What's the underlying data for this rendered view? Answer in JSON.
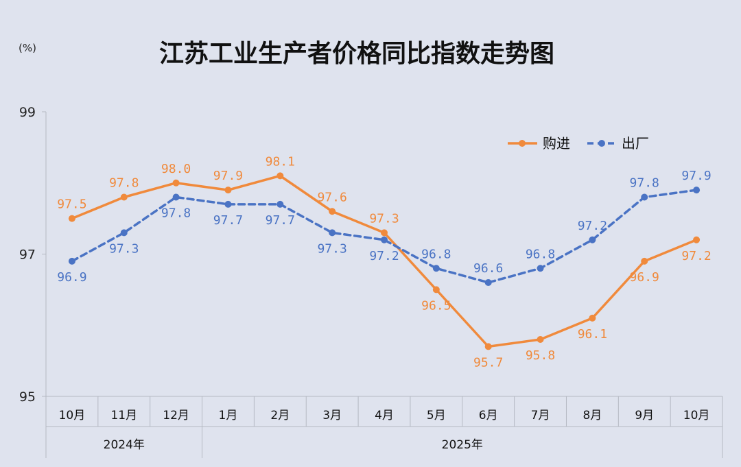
{
  "chart_data": {
    "type": "line",
    "title": "江苏工业生产者价格同比指数走势图",
    "unit_label": "(%)",
    "ylim": [
      95,
      99
    ],
    "yticks": [
      "95",
      "97",
      "99"
    ],
    "grid": false,
    "legend_position": "top-right",
    "categories": [
      "10月",
      "11月",
      "12月",
      "1月",
      "2月",
      "3月",
      "4月",
      "5月",
      "6月",
      "7月",
      "8月",
      "9月",
      "10月"
    ],
    "year_groups": [
      {
        "label": "2024年",
        "count": 3
      },
      {
        "label": "2025年",
        "count": 10
      }
    ],
    "series": [
      {
        "name": "购进",
        "color": "#f08a3c",
        "style": "solid",
        "values": [
          97.5,
          97.8,
          98.0,
          97.9,
          98.1,
          97.6,
          97.3,
          96.5,
          95.7,
          95.8,
          96.1,
          96.9,
          97.2
        ],
        "labels": [
          "97.5",
          "97.8",
          "98.0",
          "97.9",
          "98.1",
          "97.6",
          "97.3",
          "96.5",
          "95.7",
          "95.8",
          "96.1",
          "96.9",
          "97.2"
        ]
      },
      {
        "name": "出厂",
        "color": "#4a73c4",
        "style": "dashed",
        "values": [
          96.9,
          97.3,
          97.8,
          97.7,
          97.7,
          97.3,
          97.2,
          96.8,
          96.6,
          96.8,
          97.2,
          97.8,
          97.9
        ],
        "labels": [
          "96.9",
          "97.3",
          "97.8",
          "97.7",
          "97.7",
          "97.3",
          "97.2",
          "96.8",
          "96.6",
          "96.8",
          "97.2",
          "97.8",
          "97.9"
        ]
      }
    ]
  }
}
